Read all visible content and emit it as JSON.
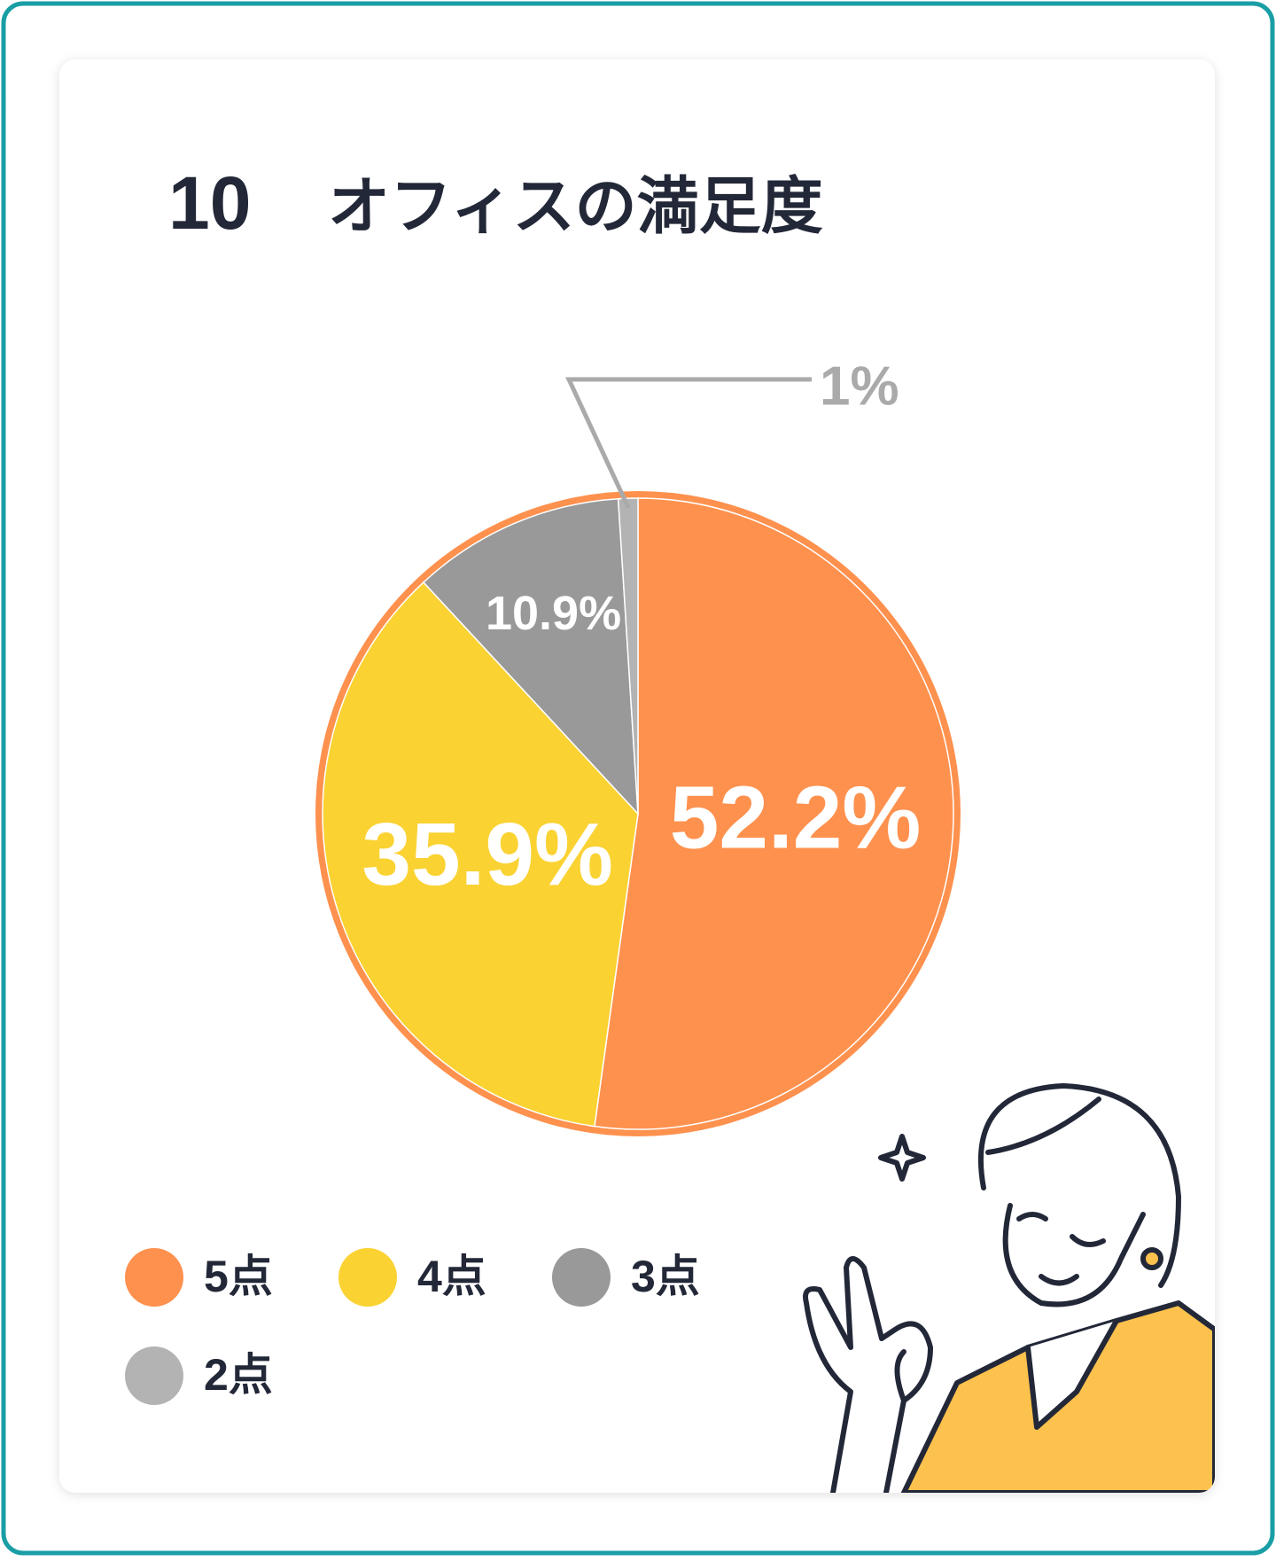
{
  "chart_data": {
    "type": "pie",
    "number": "10",
    "title": "オフィスの満足度",
    "categories": [
      "5点",
      "4点",
      "3点",
      "2点"
    ],
    "values": [
      52.2,
      35.9,
      10.9,
      1
    ],
    "value_labels": [
      "52.2%",
      "35.9%",
      "10.9%",
      "1%"
    ],
    "colors": [
      "#fe914e",
      "#fad232",
      "#999999",
      "#b3b3b3"
    ],
    "legend": "bottom-left"
  }
}
